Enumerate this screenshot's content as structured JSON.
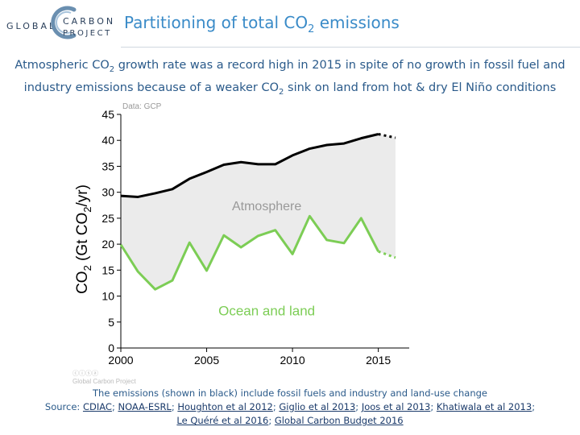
{
  "header": {
    "logo_global": "GLOBAL",
    "logo_carbon": "CARBON",
    "logo_project": "PROJECT",
    "title_main": "Partitioning of total CO",
    "title_sub": "2",
    "title_end": " emissions"
  },
  "subtitle": {
    "line1_a": "Atmospheric CO",
    "line1_sub": "2",
    "line1_b": " growth rate was a record high in 2015 in spite of no growth in fossil fuel and",
    "line2_a": "industry emissions because of a weaker CO",
    "line2_sub": "2",
    "line2_b": " sink on land from hot & dry El Niño conditions"
  },
  "chart_data": {
    "type": "area",
    "source_label": "Data: GCP",
    "ylabel_a": "CO",
    "ylabel_sub1": "2",
    "ylabel_b": " (Gt CO",
    "ylabel_sub2": "2",
    "ylabel_c": "/yr)",
    "ylim": [
      0,
      45
    ],
    "xlim": [
      2000,
      2016.8
    ],
    "yticks": [
      "0",
      "5",
      "10",
      "15",
      "20",
      "25",
      "30",
      "35",
      "40",
      "45"
    ],
    "xticks": [
      "2000",
      "2005",
      "2010",
      "2015"
    ],
    "region_label": "Atmosphere",
    "watermark": "Global Carbon Project",
    "series": [
      {
        "name": "Total emissions",
        "color": "#000000",
        "x": [
          2000,
          2001,
          2002,
          2003,
          2004,
          2005,
          2006,
          2007,
          2008,
          2009,
          2010,
          2011,
          2012,
          2013,
          2014,
          2015
        ],
        "values": [
          29.3,
          29.1,
          29.8,
          30.6,
          32.6,
          33.9,
          35.3,
          35.8,
          35.4,
          35.4,
          37.1,
          38.4,
          39.1,
          39.4,
          40.4,
          41.2
        ],
        "projection_x": [
          2015,
          2016
        ],
        "projection_values": [
          41.2,
          40.5
        ]
      },
      {
        "name": "Ocean and land",
        "label": "Ocean and land",
        "color": "#7ccd55",
        "x": [
          2000,
          2001,
          2002,
          2003,
          2004,
          2005,
          2006,
          2007,
          2008,
          2009,
          2010,
          2011,
          2012,
          2013,
          2014,
          2015
        ],
        "values": [
          19.9,
          14.7,
          11.3,
          13.0,
          20.3,
          14.9,
          21.7,
          19.4,
          21.6,
          22.7,
          18.1,
          25.4,
          20.8,
          20.2,
          25.0,
          18.6
        ],
        "projection_x": [
          2015,
          2016
        ],
        "projection_values": [
          18.6,
          17.4
        ]
      }
    ]
  },
  "footnote": {
    "line1": "The emissions (shown in black) include fossil fuels and industry and land-use change",
    "source_label": "Source: ",
    "links": [
      {
        "text": "CDIAC",
        "sep": "; "
      },
      {
        "text": "NOAA-ESRL",
        "sep": "; "
      },
      {
        "text": "Houghton et al 2012",
        "sep": "; "
      },
      {
        "text": "Giglio et al 2013",
        "sep": "; "
      },
      {
        "text": "Joos et al 2013",
        "sep": "; "
      },
      {
        "text": "Khatiwala et al 2013",
        "sep": ";"
      }
    ],
    "links2": [
      {
        "text": "Le Quéré et al 2016",
        "sep": "; "
      },
      {
        "text": "Global Carbon Budget 2016",
        "sep": ""
      }
    ]
  },
  "colors": {
    "title": "#3a8bc8",
    "text": "#2a5a8a",
    "fill": "#ebebeb",
    "green": "#7ccd55"
  }
}
